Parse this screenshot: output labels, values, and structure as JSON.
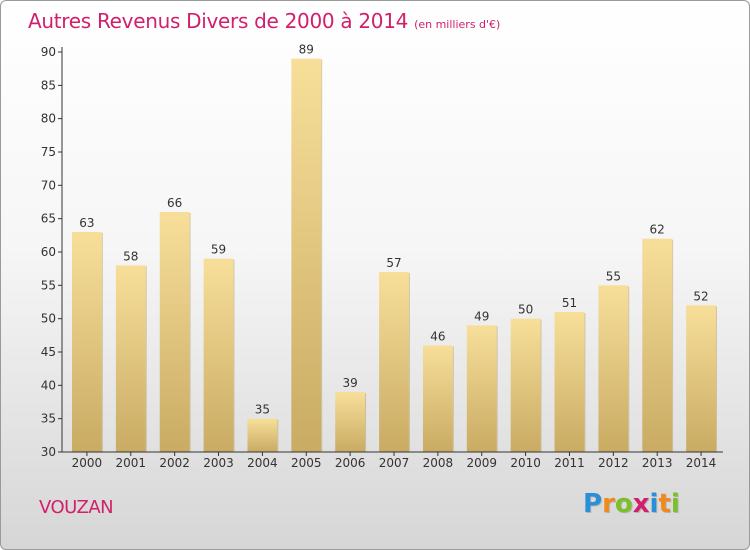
{
  "chart_data": {
    "type": "bar",
    "title": "Autres Revenus Divers de 2000 à 2014",
    "subtitle": "(en milliers d'€)",
    "categories": [
      "2000",
      "2001",
      "2002",
      "2003",
      "2004",
      "2005",
      "2006",
      "2007",
      "2008",
      "2009",
      "2010",
      "2011",
      "2012",
      "2013",
      "2014"
    ],
    "values": [
      63,
      58,
      66,
      59,
      35,
      89,
      39,
      57,
      46,
      49,
      50,
      51,
      55,
      62,
      52
    ],
    "data_labels": [
      "63",
      "58",
      "66",
      "59",
      "35",
      "89",
      "39",
      "57",
      "46",
      "49",
      "50",
      "51",
      "55",
      "62",
      "52"
    ],
    "y_ticks": [
      "30",
      "35",
      "40",
      "45",
      "50",
      "55",
      "60",
      "65",
      "70",
      "75",
      "80",
      "85",
      "90"
    ],
    "ylim": [
      30,
      90
    ],
    "grid": false,
    "legend": "none",
    "colors": {
      "bar_light": "#f7df9a",
      "bar_dark": "#c9ab63",
      "title": "#d11f6b",
      "axis": "#333333"
    }
  },
  "footer": {
    "commune": "VOUZAN",
    "logo_letters": [
      "P",
      "r",
      "o",
      "x",
      "i",
      "t",
      "i"
    ],
    "logo_colors": [
      "#2a8fd6",
      "#f08a1c",
      "#7bbf2a",
      "#d11f6b",
      "#2a8fd6",
      "#f08a1c",
      "#7bbf2a"
    ]
  }
}
